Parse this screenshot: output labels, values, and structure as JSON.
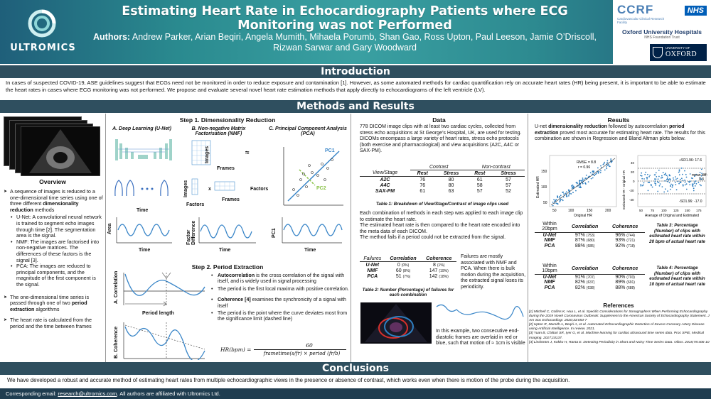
{
  "header": {
    "title": "Estimating Heart Rate in Echocardiography Patients where ECG Monitoring was not Performed",
    "authors_label": "Authors:",
    "authors": "Andrew Parker, Arian Beqiri, Angela Mumith, Mihaela Porumb, Shan Gao, Ross Upton, Paul Leeson, Jamie O’Driscoll, Rizwan Sarwar and Gary Woodward",
    "logo_text": "ULTROMICS",
    "ccrf": "CCRF",
    "ccrf_sub": "Cardiovascular Clinical Research Facility",
    "nhs": "NHS",
    "ouh": "Oxford University Hospitals",
    "ouh_sub": "NHS Foundation Trust",
    "oxford_uni": "UNIVERSITY OF",
    "oxford_name": "OXFORD"
  },
  "sections": {
    "intro": "Introduction",
    "methods": "Methods and Results",
    "conclusions": "Conclusions"
  },
  "intro_text": "In cases of suspected COVID-19, ASE guidelines suggest that ECGs need not be monitored in order to reduce exposure and contamination [1]. However, as some automated methods for cardiac quantification rely on accurate heart rates (HR) being present, it is important to be able to estimate the heart rates in cases where ECG monitoring was not performed. We propose and evaluate several novel heart rate estimation methods that apply directly to echocardiograms of the left ventricle (LV).",
  "overview": {
    "title": "Overview",
    "p1_a": "A sequence of images is reduced to a one-dimensional time series using one of three different ",
    "p1_b": "dimensionality reduction",
    "p1_c": " methods",
    "unet": "U-Net: A convolutional neural network is trained to segment echo images through time [2]. The segmentation area is the signal.",
    "nmf": "NMF: The images are factorised into non-negative matrices. The differences of these factors is the signal [3].",
    "pca": "PCA: The images are reduced to principal components, and the magnitude of the first component is the signal.",
    "p2_a": "The one-dimensional time series is passed through one of two ",
    "p2_b": "period extraction",
    "p2_c": " algorithms",
    "p3": "The heart rate is calculated from the period and the time between frames"
  },
  "step1": {
    "title": "Step 1. Dimensionality Reduction",
    "a": "A. Deep Learning (U-Net)",
    "b": "B. Non-negative Matrix Factorisation (NMF)",
    "c": "C. Principal Component Analysis (PCA)",
    "images": "Images",
    "frames": "Frames",
    "factors": "Factors",
    "approx": "≈",
    "times": "x",
    "time": "Time",
    "area": "Area",
    "factor_diff": "Factor Difference",
    "pc1": "PC1",
    "pc2": "PC2"
  },
  "step2": {
    "title": "Step 2. Period Extraction",
    "a_label": "A. Correlation",
    "b_label": "B. Coherence",
    "period_length": "Period length",
    "autocorr_b": "Autocorrelation",
    "autocorr": " is the cross correlation of the signal with itself, and is widely used in signal processing",
    "autocorr2": "The period is the first local maxima with positive correlation.",
    "coh_b": "Coherence [4]",
    "coh": " examines the synchronicity of a signal with itself",
    "coh2": "The period is the point where the curve deviates most from the significance limit (dashed line)",
    "formula_lhs": "HR(bpm) =",
    "formula_num": "60",
    "formula_den": "frametime(s/fr) × period (fr/b)"
  },
  "data": {
    "title": "Data",
    "text1": "778 DICOM image clips with at least two cardiac cycles, collected from stress echo acquisitions at St George’s Hospital, UK, are used for testing. DICOMs encompass a large variety of heart rates, stress echo protocols (both exercise and pharmacological) and view acquisitions (A2C, A4C or SAX-PM).",
    "table1": {
      "groups": [
        "Contrast",
        "Non-contrast"
      ],
      "corner": "View/Stage",
      "cols": [
        "Rest",
        "Stress",
        "Rest",
        "Stress"
      ],
      "rows": [
        {
          "label": "A2C",
          "values": [
            "76",
            "80",
            "61",
            "57"
          ]
        },
        {
          "label": "A4C",
          "values": [
            "76",
            "80",
            "58",
            "57"
          ]
        },
        {
          "label": "SAX-PM",
          "values": [
            "61",
            "63",
            "57",
            "52"
          ]
        }
      ],
      "caption": "Table 1: Breakdown of View/Stage/Contrast of image clips used"
    },
    "text2": "Each combination of methods in each step was applied to each image clip to estimate the heart rate.\nThe estimated heart rate is then compared to the heart rate encoded into the meta data of each DICOM.\nThe method fails if a period could not be extracted from the signal.",
    "table2": {
      "cols": [
        "Failures",
        "Correlation",
        "Coherence"
      ],
      "rows": [
        {
          "label": "U-Net",
          "c1": "0",
          "c1p": "(0%)",
          "c2": "8",
          "c2p": "(1%)"
        },
        {
          "label": "NMF",
          "c1": "60",
          "c1p": "(8%)",
          "c2": "147",
          "c2p": "(19%)"
        },
        {
          "label": "PCA",
          "c1": "51",
          "c1p": "(7%)",
          "c2": "142",
          "c2p": "(18%)"
        }
      ],
      "caption": "Table 2: Number (Percentage) of failures for each combination"
    },
    "text3": "Failures are mostly associated with NMF and PCA. When there is bulk motion during the acquisition, the extracted signal loses its periodicity.",
    "text4": "In this example, two consecutive end-diastolic frames are overlaid in red or blue, such that motion of ≈ 1cm is visible"
  },
  "results": {
    "title": "Results",
    "text_a": "U-net ",
    "text_b": "dimensionality reduction",
    "text_c": " followed by autocorrelation ",
    "text_d": "period extraction",
    "text_e": " proved most accurate for estimating heart rate. The results for this combination are shown in Regression and Bland Altman plots below.",
    "reg": {
      "rmse": "RMSE = 8.8",
      "r": "r = 0.96",
      "xlabel": "Original HR",
      "ylabel": "Estimated HR",
      "xticks": [
        "50",
        "100",
        "150",
        "200"
      ],
      "yticks": [
        "50",
        "100",
        "150"
      ]
    },
    "ba": {
      "upper": "+SD1.96: 17.6",
      "mean_lbl": "mean diff:",
      "mean_val": "0.3",
      "lower": "-SD1.96: -17.0",
      "xlabel": "Average of Original and Estimated",
      "ylabel": "Estimated HR - Original HR",
      "xticks": [
        "50",
        "75",
        "100",
        "125",
        "150",
        "175"
      ],
      "yticks": [
        "40",
        "20",
        "0",
        "-20",
        "-40"
      ]
    },
    "table3": {
      "corner": "Within 20bpm",
      "cols": [
        "Correlation",
        "Coherence"
      ],
      "rows": [
        {
          "label": "U-Net",
          "c1": "97%",
          "c1n": "(753)",
          "c2": "96%",
          "c2n": "(744)"
        },
        {
          "label": "NMF",
          "c1": "87%",
          "c1n": "(680)",
          "c2": "93%",
          "c2n": "(721)"
        },
        {
          "label": "PCA",
          "c1": "88%",
          "c1n": "(685)",
          "c2": "92%",
          "c2n": "(718)"
        }
      ],
      "caption": "Table 3: Percentage (Number) of clips with estimated heart rate within 20 bpm of actual heart rate"
    },
    "table4": {
      "corner": "Within 10bpm",
      "cols": [
        "Correlation",
        "Coherence"
      ],
      "rows": [
        {
          "label": "U-Net",
          "c1": "91%",
          "c1n": "(707)",
          "c2": "90%",
          "c2n": "(703)"
        },
        {
          "label": "NMF",
          "c1": "82%",
          "c1n": "(637)",
          "c2": "89%",
          "c2n": "(691)"
        },
        {
          "label": "PCA",
          "c1": "82%",
          "c1n": "(638)",
          "c2": "88%",
          "c2n": "(688)"
        }
      ],
      "caption": "Table 4: Percentage (Number) of clips with estimated heart rate within 10 bpm of actual heart rate"
    },
    "references_title": "References",
    "references": [
      "[1] Mitchell C, Collins K, Hua L, et al. Specific Considerations for Sonographers When Performing Echocardiography during the 2019 Novel Coronavirus Outbreak: Supplement to the American Society of Echocardiography Statement. J Am Soc Echocardiogr. 2020;33:654-7",
      "[2] Upton R, Mumith A, Beqiri A, et al. Automated Echocardiographic Detection of Severe Coronary Artery Disease using Artificial Intelligence. In review. 2021.",
      "[3] Yuan B, Chitturi SR, Iyer G, et al. Machine learning for cardiac ultrasound time series data. Proc SPIE, Medical Imaging. 2017;10137.",
      "[4] Lindström J, Kokko H, Ranta E. Detecting Periodicity in Short and Noisy Time Series Data. Oikos. 2018;78:406-10"
    ]
  },
  "conclusion_text": "We have developed a robust and accurate method of estimating heart rates from multiple echocardiographic views in the presence or absence of contrast, which works even when there is motion of the probe during the acquisition.",
  "footer": {
    "label": "Corresponding email: ",
    "email": "research@ultromics.com",
    "rest": ". All authors are affiliated with Ultromics Ltd."
  },
  "colors": {
    "header_start": "#1f5f7a",
    "header_mid": "#3aa0a2",
    "section_bar": "#2f4f5f",
    "accent_blue": "#2e7fc1"
  }
}
